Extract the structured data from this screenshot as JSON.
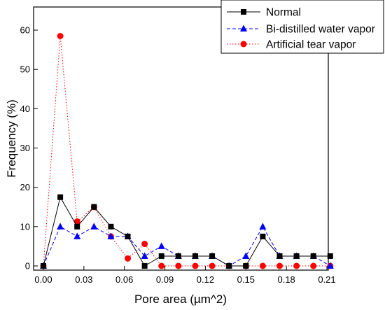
{
  "chart_data": {
    "type": "line",
    "xlabel": "Pore area (µm^2)",
    "ylabel": "Frequency (%)",
    "xlim": [
      0.0,
      0.21
    ],
    "ylim": [
      0,
      65
    ],
    "x_ticks": [
      "0.00",
      "0.03",
      "0.06",
      "0.09",
      "0.12",
      "0.15",
      "0.18",
      "0.21"
    ],
    "y_ticks": [
      "0",
      "10",
      "20",
      "30",
      "40",
      "50",
      "60"
    ],
    "grid": false,
    "legend_position": "top-right",
    "x": [
      0.0,
      0.0125,
      0.025,
      0.0375,
      0.05,
      0.0625,
      0.075,
      0.0875,
      0.1,
      0.1125,
      0.125,
      0.1375,
      0.15,
      0.1625,
      0.175,
      0.1875,
      0.2,
      0.2125
    ],
    "series": [
      {
        "name": "Normal",
        "color": "#000000",
        "line": "solid",
        "marker": "square",
        "values": [
          0,
          17.5,
          10,
          15,
          10,
          7.5,
          0,
          2.5,
          2.5,
          2.5,
          2.5,
          0,
          0,
          7.5,
          2.5,
          2.5,
          2.5,
          2.5
        ]
      },
      {
        "name": "Bi-distilled water vapor",
        "color": "#0000ff",
        "line": "dashed",
        "marker": "triangle",
        "values": [
          0,
          10,
          7.5,
          10,
          7.5,
          7.5,
          2.5,
          5,
          2.5,
          2.5,
          2.5,
          0,
          2.5,
          10,
          2.5,
          2.5,
          2.5,
          0
        ]
      },
      {
        "name": "Artificial tear vapor",
        "color": "#ff0000",
        "line": "dotted",
        "marker": "circle",
        "values": [
          0,
          58.5,
          11.3,
          15,
          7.5,
          1.9,
          5.6,
          0,
          0,
          0,
          0,
          0,
          0,
          0,
          0,
          0,
          0,
          0
        ]
      }
    ]
  }
}
